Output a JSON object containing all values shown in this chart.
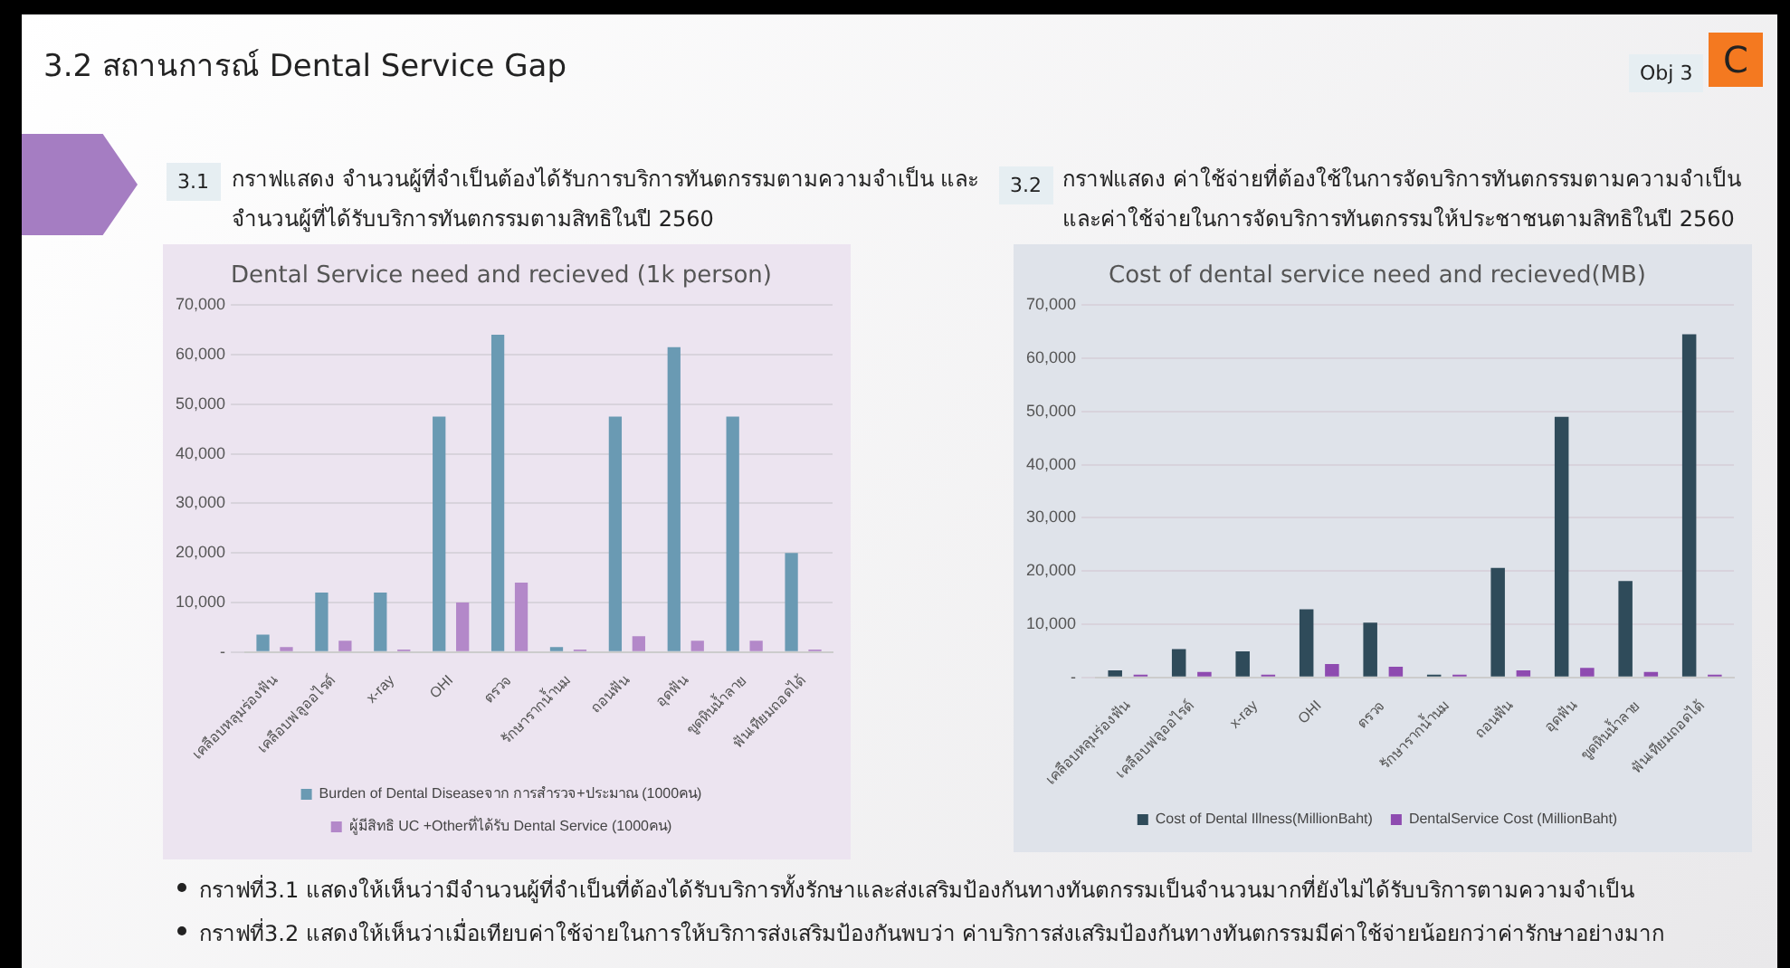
{
  "chart_data": [
    {
      "type": "bar",
      "title": "Dental Service need and recieved (1k person)",
      "categories": [
        "เคลือบหลุมร่องฟัน",
        "เคลือบฟลูออไรด์",
        "x-ray",
        "OHI",
        "ตรวจ",
        "รักษารากน้ำนม",
        "ถอนฟัน",
        "อุดฟัน",
        "ขูดหินน้ำลาย",
        "ฟันเทียมถอดได้"
      ],
      "series": [
        {
          "name": "Burden of Dental Diseaseจาก การสำรวจ+ประมาณ (1000คน)",
          "color": "#6a9ab3",
          "values": [
            3500,
            12000,
            12000,
            47500,
            64000,
            1000,
            47500,
            61500,
            47500,
            20000
          ]
        },
        {
          "name": "ผู้มีสิทธิ UC +Otherที่ได้รับ Dental Service (1000คน)",
          "color": "#b388c9",
          "values": [
            1000,
            2300,
            500,
            10000,
            14000,
            500,
            3200,
            2300,
            2300,
            500
          ]
        }
      ],
      "ylim": [
        0,
        70000
      ],
      "yticks": [
        {
          "value": 0,
          "label": "-"
        },
        {
          "value": 10000,
          "label": "10,000"
        },
        {
          "value": 20000,
          "label": "20,000"
        },
        {
          "value": 30000,
          "label": "30,000"
        },
        {
          "value": 40000,
          "label": "40,000"
        },
        {
          "value": 50000,
          "label": "50,000"
        },
        {
          "value": 60000,
          "label": "60,000"
        },
        {
          "value": 70000,
          "label": "70,000"
        }
      ],
      "grid": "y",
      "legend": "bottom",
      "annotations": [
        "3.2 สถานการณ์ Dental Service Gap",
        "3.1",
        "กราฟแสดง จำนวนผู้ที่จำเป็นต้องได้รับการบริการทันตกรรมตามความจำเป็น และจำนวนผู้ที่ได้รับบริการทันตกรรมตามสิทธิในปี 2560",
        "กราฟที่3.1 แสดงให้เห็นว่ามีจำนวนผู้ที่จำเป็นที่ต้องได้รับบริการทั้งรักษาและส่งเสริมป้องกันทางทันตกรรมเป็นจำนวนมากที่ยังไม่ได้รับบริการตามความจำเป็น"
      ]
    },
    {
      "type": "bar",
      "title": "Cost of dental service need and recieved(MB)",
      "categories": [
        "เคลือบหลุมร่องฟัน",
        "เคลือบฟลูออไรด์",
        "x-ray",
        "OHI",
        "ตรวจ",
        "รักษารากน้ำนม",
        "ถอนฟัน",
        "อุดฟัน",
        "ขูดหินน้ำลาย",
        "ฟันเทียมถอดได้"
      ],
      "series": [
        {
          "name": "Cost of Dental Illness(MillionBaht)",
          "color": "#2f4b5a",
          "values": [
            1300,
            5300,
            4900,
            12800,
            10300,
            500,
            20600,
            49000,
            18100,
            64500
          ]
        },
        {
          "name": "DentalService Cost (MillionBaht)",
          "color": "#8e4bb0",
          "values": [
            500,
            1000,
            500,
            2500,
            2000,
            500,
            1300,
            1800,
            1000,
            500
          ]
        }
      ],
      "ylim": [
        0,
        70000
      ],
      "yticks": [
        {
          "value": 0,
          "label": "-"
        },
        {
          "value": 10000,
          "label": "10,000"
        },
        {
          "value": 20000,
          "label": "20,000"
        },
        {
          "value": 30000,
          "label": "30,000"
        },
        {
          "value": 40000,
          "label": "40,000"
        },
        {
          "value": 50000,
          "label": "50,000"
        },
        {
          "value": 60000,
          "label": "60,000"
        },
        {
          "value": 70000,
          "label": "70,000"
        }
      ],
      "grid": "y",
      "legend": "bottom",
      "annotations": [
        "Obj 3",
        "C",
        "3.2",
        "กราฟแสดง ค่าใช้จ่ายที่ต้องใช้ในการจัดบริการทันตกรรมตามความจำเป็นและค่าใช้จ่ายในการจัดบริการทันตกรรมให้ประชาชนตามสิทธิในปี 2560",
        "กราฟที่3.2 แสดงให้เห็นว่าเมื่อเทียบค่าใช้จ่ายในการให้บริการส่งเสริมป้องกันพบว่า ค่าบริการส่งเสริมป้องกันทางทันตกรรมมีค่าใช้จ่ายน้อยกว่าค่ารักษาอย่างมาก"
      ]
    }
  ]
}
